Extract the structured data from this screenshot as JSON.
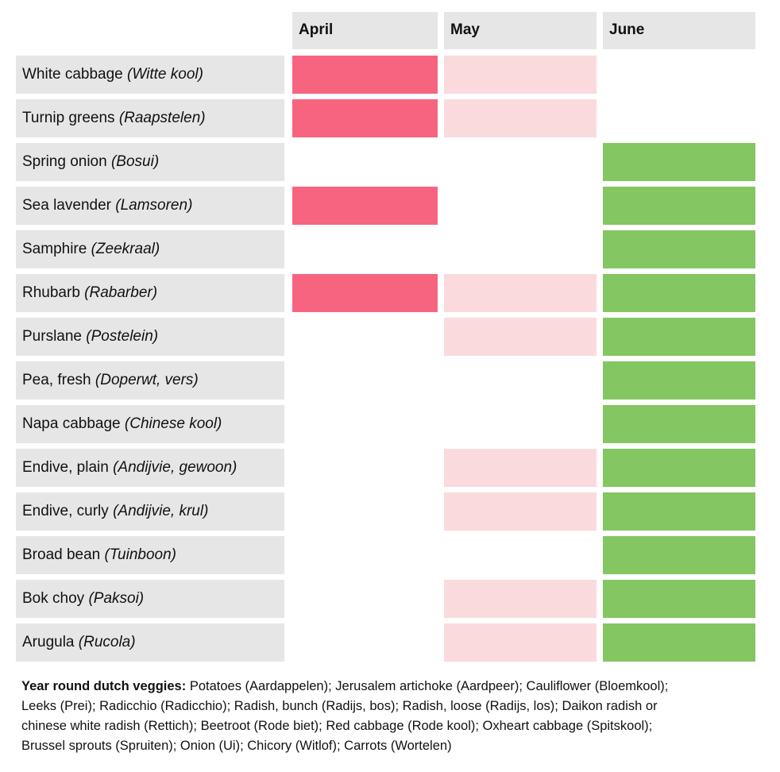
{
  "header": {
    "columns": [
      "April",
      "May",
      "June"
    ]
  },
  "table": {
    "rows": [
      {
        "name": "White cabbage",
        "local": "(Witte kool)",
        "cells": [
          "#f7647f",
          "#fadadd",
          null
        ]
      },
      {
        "name": "Turnip greens",
        "local": "(Raapstelen)",
        "cells": [
          "#f7647f",
          "#fadadd",
          null
        ]
      },
      {
        "name": "Spring onion",
        "local": "(Bosui)",
        "cells": [
          null,
          null,
          "#84c662"
        ]
      },
      {
        "name": "Sea lavender",
        "local": "(Lamsoren)",
        "cells": [
          "#f7647f",
          null,
          "#84c662"
        ]
      },
      {
        "name": "Samphire",
        "local": "(Zeekraal)",
        "cells": [
          null,
          null,
          "#84c662"
        ]
      },
      {
        "name": "Rhubarb",
        "local": "(Rabarber)",
        "cells": [
          "#f7647f",
          "#fadadd",
          "#84c662"
        ]
      },
      {
        "name": "Purslane",
        "local": "(Postelein)",
        "cells": [
          null,
          "#fadadd",
          "#84c662"
        ]
      },
      {
        "name": "Pea, fresh",
        "local": "(Doperwt, vers)",
        "cells": [
          null,
          null,
          "#84c662"
        ]
      },
      {
        "name": "Napa cabbage",
        "local": "(Chinese kool)",
        "cells": [
          null,
          null,
          "#84c662"
        ]
      },
      {
        "name": "Endive, plain",
        "local": "(Andijvie, gewoon)",
        "cells": [
          null,
          "#fadadd",
          "#84c662"
        ]
      },
      {
        "name": "Endive, curly",
        "local": "(Andijvie, krul)",
        "cells": [
          null,
          "#fadadd",
          "#84c662"
        ]
      },
      {
        "name": "Broad bean",
        "local": "(Tuinboon)",
        "cells": [
          null,
          null,
          "#84c662"
        ]
      },
      {
        "name": "Bok choy",
        "local": "(Paksoi)",
        "cells": [
          null,
          "#fadadd",
          "#84c662"
        ]
      },
      {
        "name": "Arugula",
        "local": "(Rucola)",
        "cells": [
          null,
          "#fadadd",
          "#84c662"
        ]
      }
    ]
  },
  "footer": {
    "label": "Year round dutch veggies:",
    "text": "Potatoes (Aardappelen); Jerusalem artichoke (Aardpeer); Cauliflower (Bloemkool); Leeks (Prei); Radicchio (Radicchio); Radish, bunch (Radijs, bos); Radish, loose (Radijs, los); Daikon radish or chinese white radish (Rettich); Beetroot (Rode biet); Red cabbage (Rode kool); Oxheart cabbage (Spitskool); Brussel sprouts (Spruiten); Onion (Ui); Chicory (Witlof); Carrots (Wortelen)"
  }
}
